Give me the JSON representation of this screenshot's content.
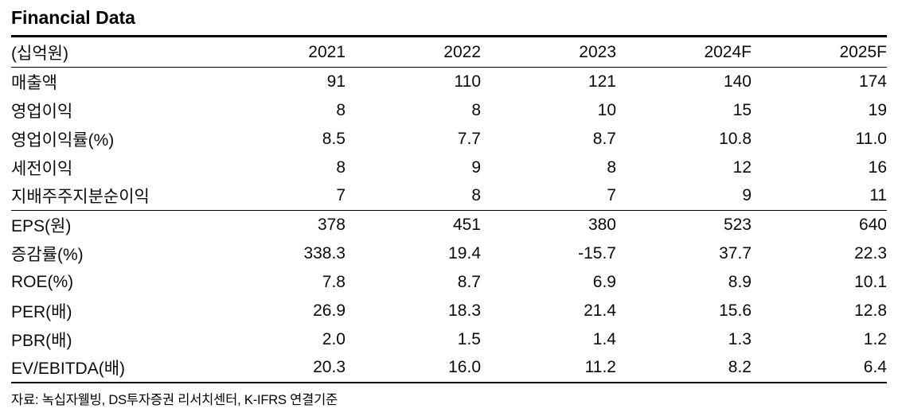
{
  "title": "Financial Data",
  "table": {
    "unit_label": "(십억원)",
    "columns": [
      "2021",
      "2022",
      "2023",
      "2024F",
      "2025F"
    ],
    "sections": [
      {
        "rows": [
          {
            "label": "매출액",
            "values": [
              "91",
              "110",
              "121",
              "140",
              "174"
            ]
          },
          {
            "label": "영업이익",
            "values": [
              "8",
              "8",
              "10",
              "15",
              "19"
            ]
          },
          {
            "label": "영업이익률(%)",
            "values": [
              "8.5",
              "7.7",
              "8.7",
              "10.8",
              "11.0"
            ]
          },
          {
            "label": "세전이익",
            "values": [
              "8",
              "9",
              "8",
              "12",
              "16"
            ]
          },
          {
            "label": "지배주주지분순이익",
            "values": [
              "7",
              "8",
              "7",
              "9",
              "11"
            ]
          }
        ]
      },
      {
        "rows": [
          {
            "label": "EPS(원)",
            "values": [
              "378",
              "451",
              "380",
              "523",
              "640"
            ]
          },
          {
            "label": "증감률(%)",
            "values": [
              "338.3",
              "19.4",
              "-15.7",
              "37.7",
              "22.3"
            ]
          },
          {
            "label": "ROE(%)",
            "values": [
              "7.8",
              "8.7",
              "6.9",
              "8.9",
              "10.1"
            ]
          },
          {
            "label": "PER(배)",
            "values": [
              "26.9",
              "18.3",
              "21.4",
              "15.6",
              "12.8"
            ]
          },
          {
            "label": "PBR(배)",
            "values": [
              "2.0",
              "1.5",
              "1.4",
              "1.3",
              "1.2"
            ]
          },
          {
            "label": "EV/EBITDA(배)",
            "values": [
              "20.3",
              "16.0",
              "11.2",
              "8.2",
              "6.4"
            ]
          }
        ]
      }
    ]
  },
  "footer": "자료: 녹십자웰빙, DS투자증권 리서치센터, K-IFRS 연결기준",
  "colors": {
    "text": "#0b0b0b",
    "rule": "#000000",
    "background": "#ffffff"
  },
  "chart_data": {
    "type": "table",
    "title": "Financial Data",
    "unit": "십억원",
    "categories": [
      "2021",
      "2022",
      "2023",
      "2024F",
      "2025F"
    ],
    "series": [
      {
        "name": "매출액",
        "values": [
          91,
          110,
          121,
          140,
          174
        ]
      },
      {
        "name": "영업이익",
        "values": [
          8,
          8,
          10,
          15,
          19
        ]
      },
      {
        "name": "영업이익률(%)",
        "values": [
          8.5,
          7.7,
          8.7,
          10.8,
          11.0
        ]
      },
      {
        "name": "세전이익",
        "values": [
          8,
          9,
          8,
          12,
          16
        ]
      },
      {
        "name": "지배주주지분순이익",
        "values": [
          7,
          8,
          7,
          9,
          11
        ]
      },
      {
        "name": "EPS(원)",
        "values": [
          378,
          451,
          380,
          523,
          640
        ]
      },
      {
        "name": "증감률(%)",
        "values": [
          338.3,
          19.4,
          -15.7,
          37.7,
          22.3
        ]
      },
      {
        "name": "ROE(%)",
        "values": [
          7.8,
          8.7,
          6.9,
          8.9,
          10.1
        ]
      },
      {
        "name": "PER(배)",
        "values": [
          26.9,
          18.3,
          21.4,
          15.6,
          12.8
        ]
      },
      {
        "name": "PBR(배)",
        "values": [
          2.0,
          1.5,
          1.4,
          1.3,
          1.2
        ]
      },
      {
        "name": "EV/EBITDA(배)",
        "values": [
          20.3,
          16.0,
          11.2,
          8.2,
          6.4
        ]
      }
    ],
    "source_note": "자료: 녹십자웰빙, DS투자증권 리서치센터, K-IFRS 연결기준"
  }
}
